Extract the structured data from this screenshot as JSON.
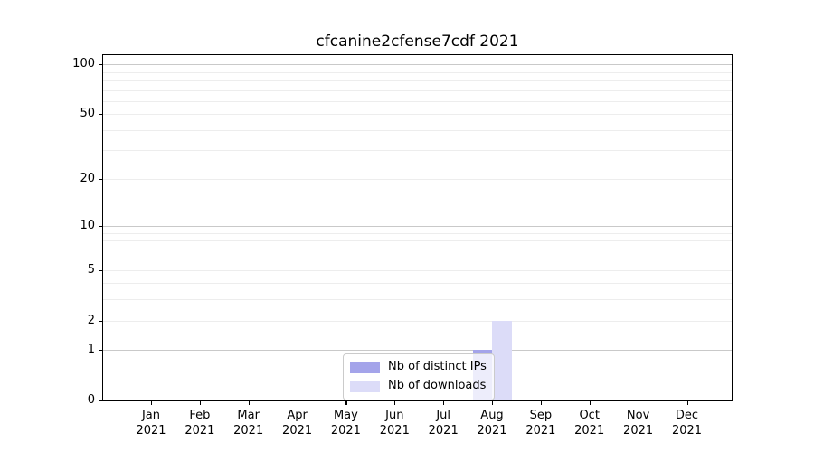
{
  "chart_data": {
    "type": "bar",
    "title": "cfcanine2cfense7cdf 2021",
    "categories": [
      "Jan",
      "Feb",
      "Mar",
      "Apr",
      "May",
      "Jun",
      "Jul",
      "Aug",
      "Sep",
      "Oct",
      "Nov",
      "Dec"
    ],
    "category_year": "2021",
    "series": [
      {
        "name": "Nb of distinct IPs",
        "color": "#a4a4ea",
        "values": [
          0,
          0,
          0,
          0,
          0,
          0,
          0,
          1,
          0,
          0,
          0,
          0
        ]
      },
      {
        "name": "Nb of downloads",
        "color": "#dcdcf8",
        "values": [
          0,
          0,
          0,
          0,
          0,
          0,
          0,
          2,
          0,
          0,
          0,
          0
        ]
      }
    ],
    "y_axis": {
      "scale": "log1p",
      "tick_labels": [
        0,
        1,
        2,
        5,
        10,
        20,
        50,
        100
      ],
      "major_gridlines": [
        1,
        10,
        100
      ],
      "minor_gridlines": [
        2,
        3,
        4,
        5,
        6,
        7,
        8,
        9,
        20,
        30,
        40,
        50,
        60,
        70,
        80,
        90
      ],
      "range": [
        0,
        119
      ]
    },
    "x_axis": {
      "label_format": "month over year"
    },
    "legend": {
      "position": "lower center",
      "entries": [
        "Nb of distinct IPs",
        "Nb of downloads"
      ]
    },
    "grid": true
  },
  "colors": {
    "spine": "#000000",
    "major_grid": "#c9c9c9",
    "minor_grid": "#ededed",
    "text": "#000000",
    "background": "#ffffff"
  }
}
